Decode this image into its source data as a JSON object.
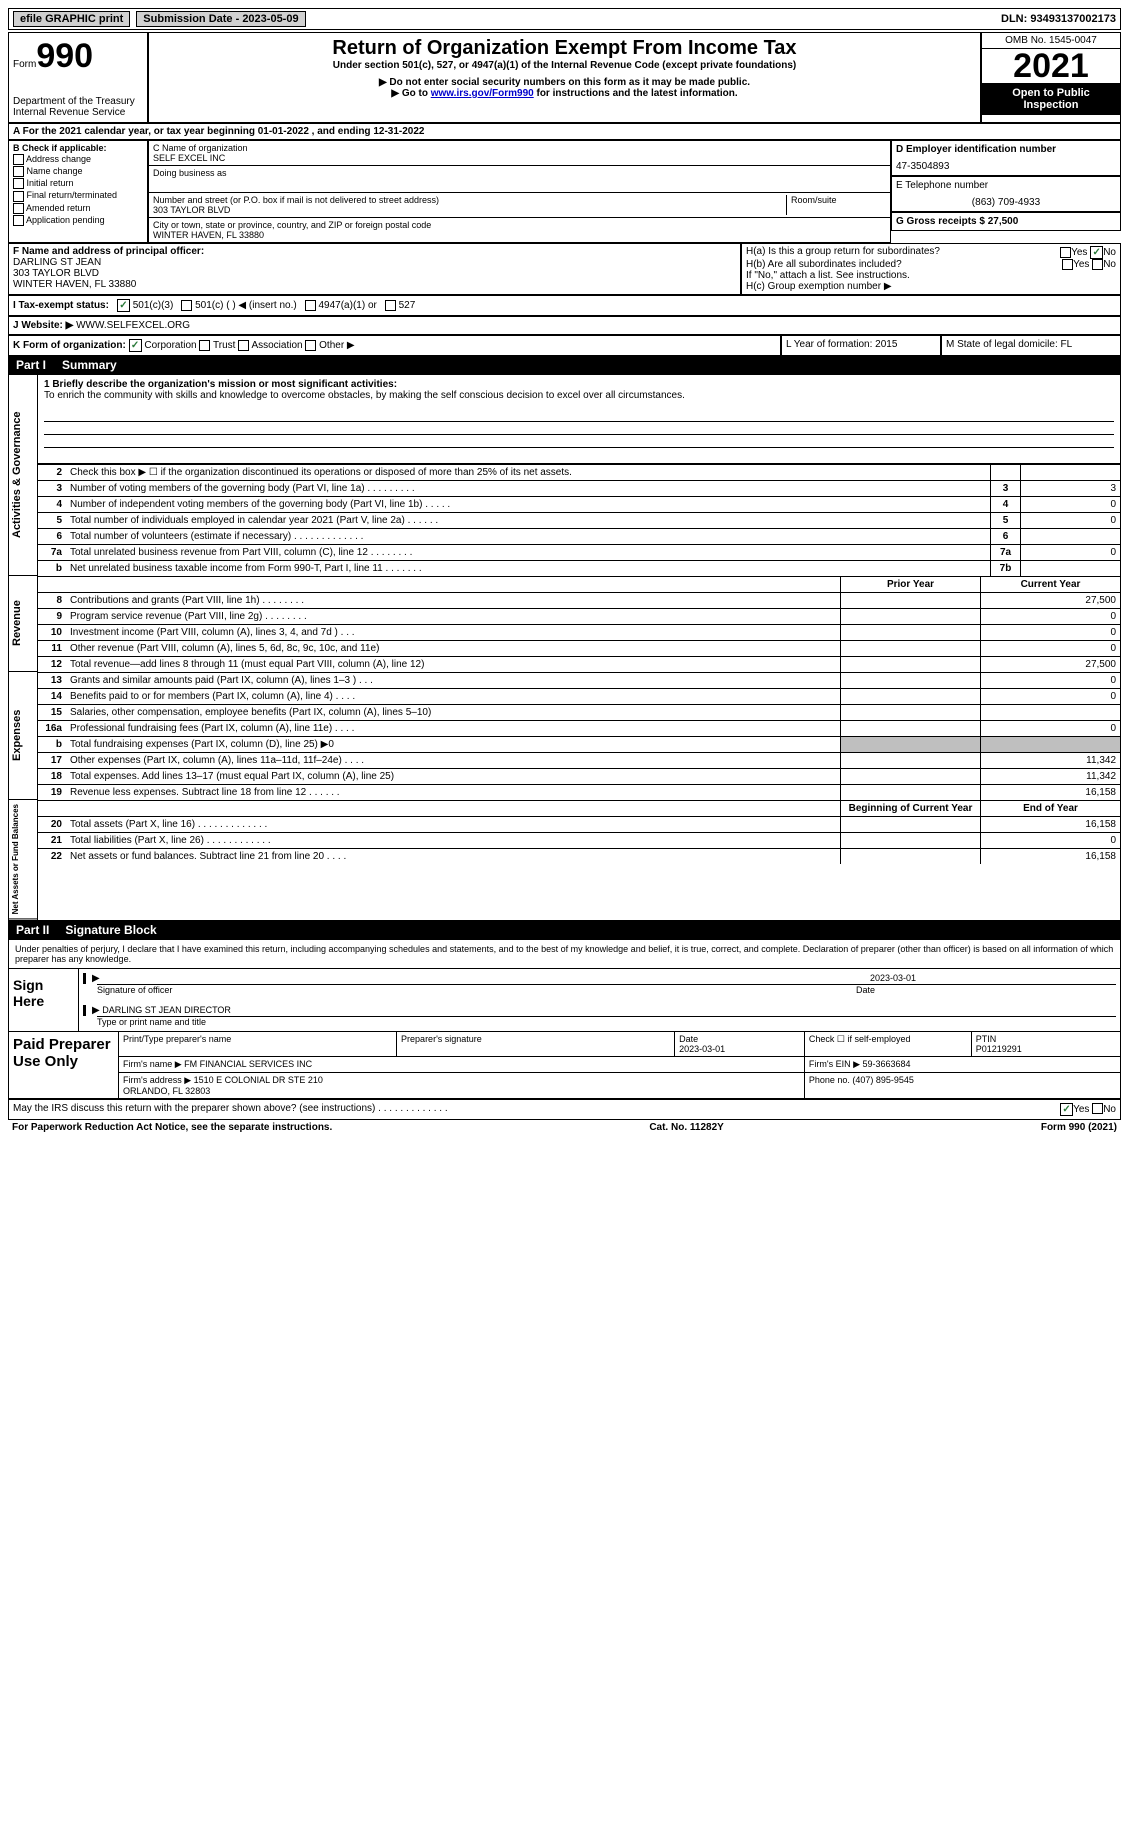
{
  "topbar": {
    "efile": "efile GRAPHIC print",
    "submission": "Submission Date - 2023-05-09",
    "dln": "DLN: 93493137002173"
  },
  "header": {
    "form_label": "Form",
    "form_num": "990",
    "dept": "Department of the Treasury\nInternal Revenue Service",
    "title": "Return of Organization Exempt From Income Tax",
    "sub1": "Under section 501(c), 527, or 4947(a)(1) of the Internal Revenue Code (except private foundations)",
    "sub2": "▶ Do not enter social security numbers on this form as it may be made public.",
    "sub3_pre": "▶ Go to ",
    "sub3_link": "www.irs.gov/Form990",
    "sub3_post": " for instructions and the latest information.",
    "omb": "OMB No. 1545-0047",
    "year": "2021",
    "inspection": "Open to Public Inspection"
  },
  "line_a": "A For the 2021 calendar year, or tax year beginning 01-01-2022    , and ending 12-31-2022",
  "col_b": {
    "label": "B Check if applicable:",
    "items": [
      "Address change",
      "Name change",
      "Initial return",
      "Final return/terminated",
      "Amended return",
      "Application pending"
    ]
  },
  "col_c": {
    "name_label": "C Name of organization",
    "name": "SELF EXCEL INC",
    "dba_label": "Doing business as",
    "addr_label": "Number and street (or P.O. box if mail is not delivered to street address)",
    "room_label": "Room/suite",
    "addr": "303 TAYLOR BLVD",
    "city_label": "City or town, state or province, country, and ZIP or foreign postal code",
    "city": "WINTER HAVEN, FL  33880"
  },
  "col_d": {
    "ein_label": "D Employer identification number",
    "ein": "47-3504893",
    "phone_label": "E Telephone number",
    "phone": "(863) 709-4933",
    "receipts_label": "G Gross receipts $ 27,500"
  },
  "section_f": {
    "f_label": "F  Name and address of principal officer:",
    "officer": "DARLING ST JEAN\n303 TAYLOR BLVD\nWINTER HAVEN, FL  33880",
    "ha": "H(a)  Is this a group return for subordinates?",
    "hb": "H(b)  Are all subordinates included?",
    "hb_note": "If \"No,\" attach a list. See instructions.",
    "hc": "H(c)  Group exemption number ▶"
  },
  "line_i": {
    "label": "I   Tax-exempt status:",
    "o1": "501(c)(3)",
    "o2": "501(c) (   ) ◀ (insert no.)",
    "o3": "4947(a)(1) or",
    "o4": "527"
  },
  "line_j": {
    "label": "J   Website: ▶",
    "val": "WWW.SELFEXCEL.ORG"
  },
  "line_k": {
    "label": "K Form of organization:",
    "corp": "Corporation",
    "trust": "Trust",
    "assoc": "Association",
    "other": "Other ▶",
    "l_label": "L Year of formation: 2015",
    "m_label": "M State of legal domicile: FL"
  },
  "part1": {
    "num": "Part I",
    "title": "Summary"
  },
  "mission": {
    "label": "1   Briefly describe the organization's mission or most significant activities:",
    "text": "To enrich the community with skills and knowledge to overcome obstacles, by making the self conscious decision to excel over all circumstances."
  },
  "lines_gov": [
    {
      "n": "2",
      "d": "Check this box ▶ ☐  if the organization discontinued its operations or disposed of more than 25% of its net assets.",
      "b": "",
      "v": ""
    },
    {
      "n": "3",
      "d": "Number of voting members of the governing body (Part VI, line 1a)    .    .    .    .    .    .    .    .    .",
      "b": "3",
      "v": "3"
    },
    {
      "n": "4",
      "d": "Number of independent voting members of the governing body (Part VI, line 1b)    .    .    .    .    .",
      "b": "4",
      "v": "0"
    },
    {
      "n": "5",
      "d": "Total number of individuals employed in calendar year 2021 (Part V, line 2a)    .    .    .    .    .    .",
      "b": "5",
      "v": "0"
    },
    {
      "n": "6",
      "d": "Total number of volunteers (estimate if necessary)    .    .    .    .    .    .    .    .    .    .    .    .    .",
      "b": "6",
      "v": ""
    },
    {
      "n": "7a",
      "d": "Total unrelated business revenue from Part VIII, column (C), line 12    .    .    .    .    .    .    .    .",
      "b": "7a",
      "v": "0"
    },
    {
      "n": "b",
      "d": "Net unrelated business taxable income from Form 990-T, Part I, line 11    .    .    .    .    .    .    .",
      "b": "7b",
      "v": ""
    }
  ],
  "col_hdrs": {
    "prior": "Prior Year",
    "curr": "Current Year"
  },
  "lines_rev": [
    {
      "n": "8",
      "d": "Contributions and grants (Part VIII, line 1h)    .    .    .    .    .    .    .    .",
      "p": "",
      "c": "27,500"
    },
    {
      "n": "9",
      "d": "Program service revenue (Part VIII, line 2g)    .    .    .    .    .    .    .    .",
      "p": "",
      "c": "0"
    },
    {
      "n": "10",
      "d": "Investment income (Part VIII, column (A), lines 3, 4, and 7d )    .    .    .",
      "p": "",
      "c": "0"
    },
    {
      "n": "11",
      "d": "Other revenue (Part VIII, column (A), lines 5, 6d, 8c, 9c, 10c, and 11e)",
      "p": "",
      "c": "0"
    },
    {
      "n": "12",
      "d": "Total revenue—add lines 8 through 11 (must equal Part VIII, column (A), line 12)",
      "p": "",
      "c": "27,500"
    }
  ],
  "lines_exp": [
    {
      "n": "13",
      "d": "Grants and similar amounts paid (Part IX, column (A), lines 1–3 )    .    .    .",
      "p": "",
      "c": "0"
    },
    {
      "n": "14",
      "d": "Benefits paid to or for members (Part IX, column (A), line 4)    .    .    .    .",
      "p": "",
      "c": "0"
    },
    {
      "n": "15",
      "d": "Salaries, other compensation, employee benefits (Part IX, column (A), lines 5–10)",
      "p": "",
      "c": ""
    },
    {
      "n": "16a",
      "d": "Professional fundraising fees (Part IX, column (A), line 11e)    .    .    .    .",
      "p": "",
      "c": "0"
    },
    {
      "n": "b",
      "d": "Total fundraising expenses (Part IX, column (D), line 25) ▶0",
      "p": "grey",
      "c": "grey"
    },
    {
      "n": "17",
      "d": "Other expenses (Part IX, column (A), lines 11a–11d, 11f–24e)    .    .    .    .",
      "p": "",
      "c": "11,342"
    },
    {
      "n": "18",
      "d": "Total expenses. Add lines 13–17 (must equal Part IX, column (A), line 25)",
      "p": "",
      "c": "11,342"
    },
    {
      "n": "19",
      "d": "Revenue less expenses. Subtract line 18 from line 12    .    .    .    .    .    .",
      "p": "",
      "c": "16,158"
    }
  ],
  "col_hdrs2": {
    "prior": "Beginning of Current Year",
    "curr": "End of Year"
  },
  "lines_net": [
    {
      "n": "20",
      "d": "Total assets (Part X, line 16)    .    .    .    .    .    .    .    .    .    .    .    .    .",
      "p": "",
      "c": "16,158"
    },
    {
      "n": "21",
      "d": "Total liabilities (Part X, line 26)    .    .    .    .    .    .    .    .    .    .    .    .",
      "p": "",
      "c": "0"
    },
    {
      "n": "22",
      "d": "Net assets or fund balances. Subtract line 21 from line 20    .    .    .    .",
      "p": "",
      "c": "16,158"
    }
  ],
  "part2": {
    "num": "Part II",
    "title": "Signature Block"
  },
  "sig": {
    "declaration": "Under penalties of perjury, I declare that I have examined this return, including accompanying schedules and statements, and to the best of my knowledge and belief, it is true, correct, and complete. Declaration of preparer (other than officer) is based on all information of which preparer has any knowledge.",
    "sign_here": "Sign Here",
    "sig_of_officer": "Signature of officer",
    "date": "2023-03-01",
    "date_label": "Date",
    "name_title": "DARLING ST JEAN  DIRECTOR",
    "type_label": "Type or print name and title"
  },
  "preparer": {
    "label": "Paid Preparer Use Only",
    "r1": {
      "c1": "Print/Type preparer's name",
      "c2": "Preparer's signature",
      "c3": "Date\n2023-03-01",
      "c4": "Check ☐  if self-employed",
      "c5": "PTIN\nP01219291"
    },
    "r2": {
      "c1": "Firm's name     ▶ FM FINANCIAL SERVICES INC",
      "c2": "Firm's EIN ▶ 59-3663684"
    },
    "r3": {
      "c1": "Firm's address ▶ 1510 E COLONIAL DR STE 210\n                       ORLANDO, FL  32803",
      "c2": "Phone no. (407) 895-9545"
    }
  },
  "footer": {
    "discuss": "May the IRS discuss this return with the preparer shown above? (see instructions)    .    .    .    .    .    .    .    .    .    .    .    .    .",
    "yes": "Yes",
    "no": "No",
    "paperwork": "For Paperwork Reduction Act Notice, see the separate instructions.",
    "cat": "Cat. No. 11282Y",
    "formnum": "Form 990 (2021)"
  },
  "vlabels": {
    "gov": "Activities & Governance",
    "rev": "Revenue",
    "exp": "Expenses",
    "net": "Net Assets or Fund Balances"
  }
}
